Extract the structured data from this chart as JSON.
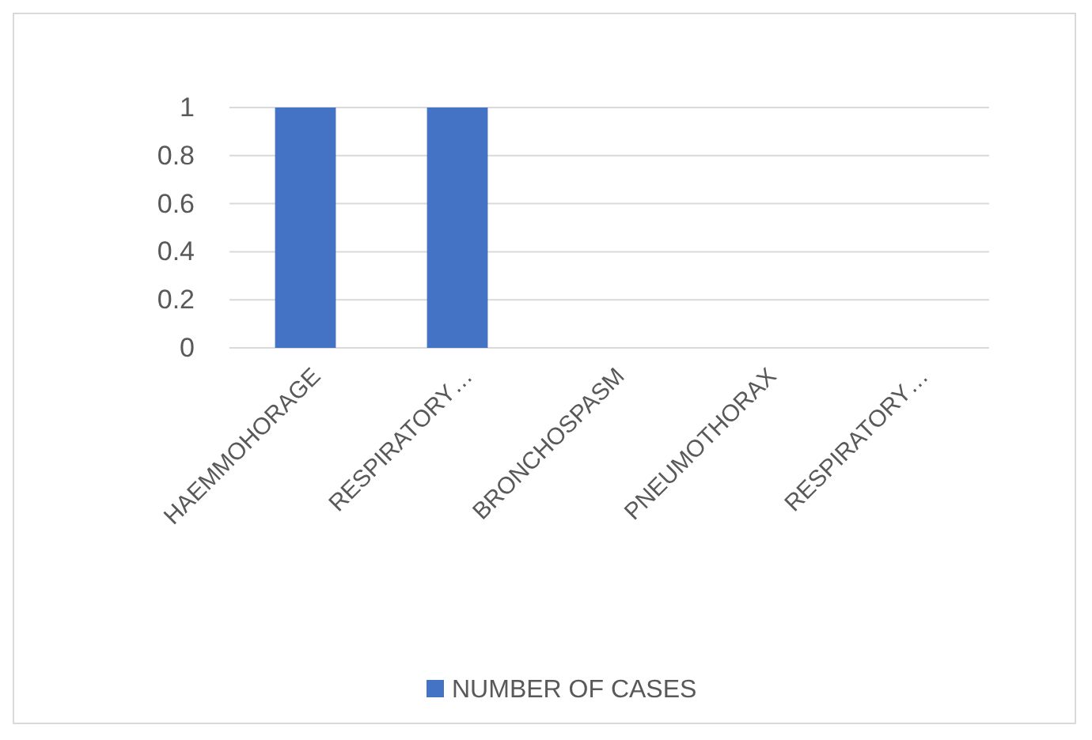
{
  "chart_data": {
    "type": "bar",
    "categories": [
      "HAEMMOHORAGE",
      "RESPIRATORY…",
      "BRONCHOSPASM",
      "PNEUMOTHORAX",
      "RESPIRATORY…"
    ],
    "series": [
      {
        "name": "NUMBER OF CASES",
        "color": "#4472c4",
        "values": [
          1,
          1,
          0,
          0,
          0
        ]
      }
    ],
    "ylim": [
      0,
      1
    ],
    "yticks": [
      0,
      0.2,
      0.4,
      0.6,
      0.8,
      1
    ],
    "grid": "y",
    "legend": "bottom"
  }
}
